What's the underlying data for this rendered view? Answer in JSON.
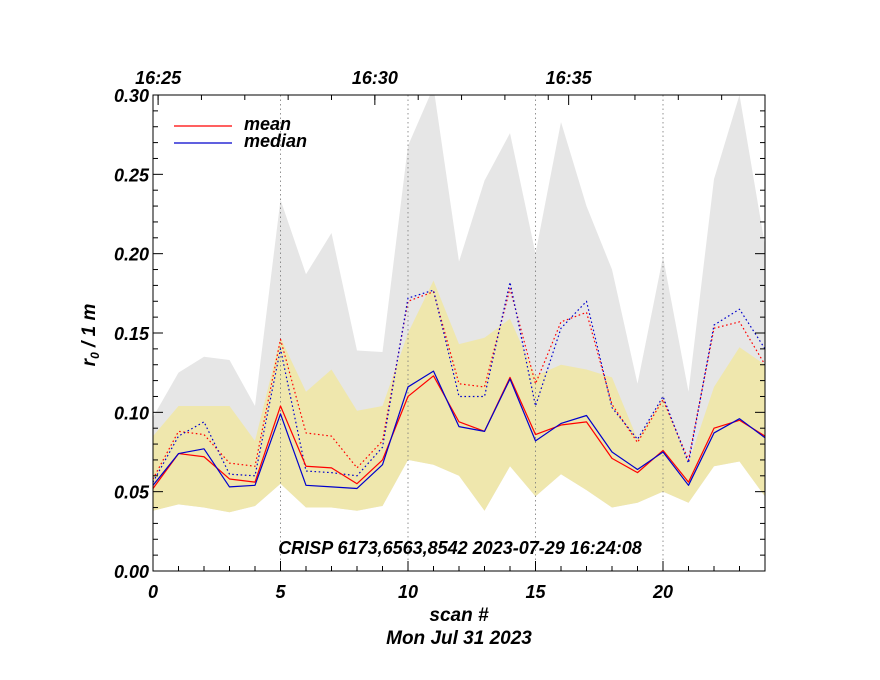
{
  "chart_data": {
    "type": "line",
    "xlabel": "scan #",
    "ylabel": "r₀ / 1 m",
    "ylabel_main": "r",
    "ylabel_sub": "0",
    "ylabel_rest": " / 1 m",
    "date_label": "Mon Jul 31 2023",
    "annotation": "CRISP 6173,6563,8542 2023-07-29 16:24:08",
    "xlim": [
      0,
      24
    ],
    "ylim": [
      0,
      0.3
    ],
    "x_ticks": [
      0,
      5,
      10,
      15,
      20
    ],
    "x_tick_labels": [
      "0",
      "5",
      "10",
      "15",
      "20"
    ],
    "y_ticks": [
      0,
      0.05,
      0.1,
      0.15,
      0.2,
      0.25,
      0.3
    ],
    "y_tick_labels": [
      "0.00",
      "0.05",
      "0.10",
      "0.15",
      "0.20",
      "0.25",
      "0.30"
    ],
    "top_axis": {
      "labels": [
        {
          "x": 0.2,
          "label": "16:25"
        },
        {
          "x": 8.7,
          "label": "16:30"
        },
        {
          "x": 16.3,
          "label": "16:35"
        }
      ]
    },
    "vertical_dotted_lines_at_x": [
      5,
      10,
      15,
      20
    ],
    "legend": {
      "placement": "top-left",
      "entries": [
        {
          "name": "mean",
          "color": "#ff0000"
        },
        {
          "name": "median",
          "color": "#0000cc"
        }
      ]
    },
    "x": [
      0,
      1,
      2,
      3,
      4,
      5,
      6,
      7,
      8,
      9,
      10,
      11,
      12,
      13,
      14,
      15,
      16,
      17,
      18,
      19,
      20,
      21,
      22,
      23,
      24
    ],
    "series": [
      {
        "name": "mean",
        "color": "#ff0000",
        "style": "solid",
        "values": [
          0.052,
          0.074,
          0.072,
          0.058,
          0.056,
          0.104,
          0.066,
          0.065,
          0.055,
          0.07,
          0.11,
          0.123,
          0.094,
          0.088,
          0.122,
          0.086,
          0.092,
          0.094,
          0.071,
          0.062,
          0.076,
          0.056,
          0.09,
          0.095,
          0.085
        ]
      },
      {
        "name": "median",
        "color": "#0000cc",
        "style": "solid",
        "values": [
          0.054,
          0.074,
          0.077,
          0.053,
          0.054,
          0.099,
          0.054,
          0.053,
          0.052,
          0.067,
          0.116,
          0.126,
          0.091,
          0.088,
          0.121,
          0.082,
          0.093,
          0.098,
          0.075,
          0.064,
          0.075,
          0.054,
          0.087,
          0.096,
          0.084
        ]
      },
      {
        "color": "#ff0000",
        "style": "dotted",
        "values": [
          0.058,
          0.088,
          0.086,
          0.068,
          0.066,
          0.146,
          0.087,
          0.085,
          0.065,
          0.082,
          0.17,
          0.176,
          0.118,
          0.116,
          0.178,
          0.118,
          0.157,
          0.163,
          0.105,
          0.081,
          0.108,
          0.07,
          0.153,
          0.157,
          0.13
        ]
      },
      {
        "color": "#0000cc",
        "style": "dotted",
        "values": [
          0.056,
          0.085,
          0.094,
          0.061,
          0.06,
          0.14,
          0.063,
          0.062,
          0.06,
          0.078,
          0.172,
          0.177,
          0.11,
          0.11,
          0.182,
          0.104,
          0.153,
          0.17,
          0.103,
          0.083,
          0.11,
          0.068,
          0.155,
          0.165,
          0.14
        ]
      }
    ],
    "bands": [
      {
        "color": "#e6e6e6",
        "upper": [
          0.097,
          0.125,
          0.135,
          0.133,
          0.104,
          0.234,
          0.187,
          0.213,
          0.139,
          0.138,
          0.268,
          0.305,
          0.195,
          0.246,
          0.276,
          0.2,
          0.283,
          0.23,
          0.19,
          0.118,
          0.198,
          0.113,
          0.247,
          0.3,
          0.205
        ],
        "lower": [
          0.038,
          0.042,
          0.04,
          0.037,
          0.041,
          0.055,
          0.04,
          0.04,
          0.038,
          0.041,
          0.07,
          0.067,
          0.06,
          0.038,
          0.066,
          0.047,
          0.061,
          0.051,
          0.04,
          0.043,
          0.05,
          0.043,
          0.066,
          0.069,
          0.047
        ]
      },
      {
        "color": "#efe7ad",
        "upper": [
          0.085,
          0.104,
          0.104,
          0.104,
          0.082,
          0.147,
          0.113,
          0.127,
          0.101,
          0.104,
          0.15,
          0.183,
          0.143,
          0.147,
          0.159,
          0.123,
          0.13,
          0.127,
          0.122,
          0.083,
          0.109,
          0.068,
          0.116,
          0.141,
          0.13
        ],
        "lower": [
          0.038,
          0.042,
          0.04,
          0.037,
          0.041,
          0.055,
          0.04,
          0.04,
          0.038,
          0.041,
          0.07,
          0.067,
          0.06,
          0.038,
          0.066,
          0.047,
          0.061,
          0.051,
          0.04,
          0.043,
          0.05,
          0.043,
          0.066,
          0.069,
          0.047
        ]
      }
    ]
  }
}
